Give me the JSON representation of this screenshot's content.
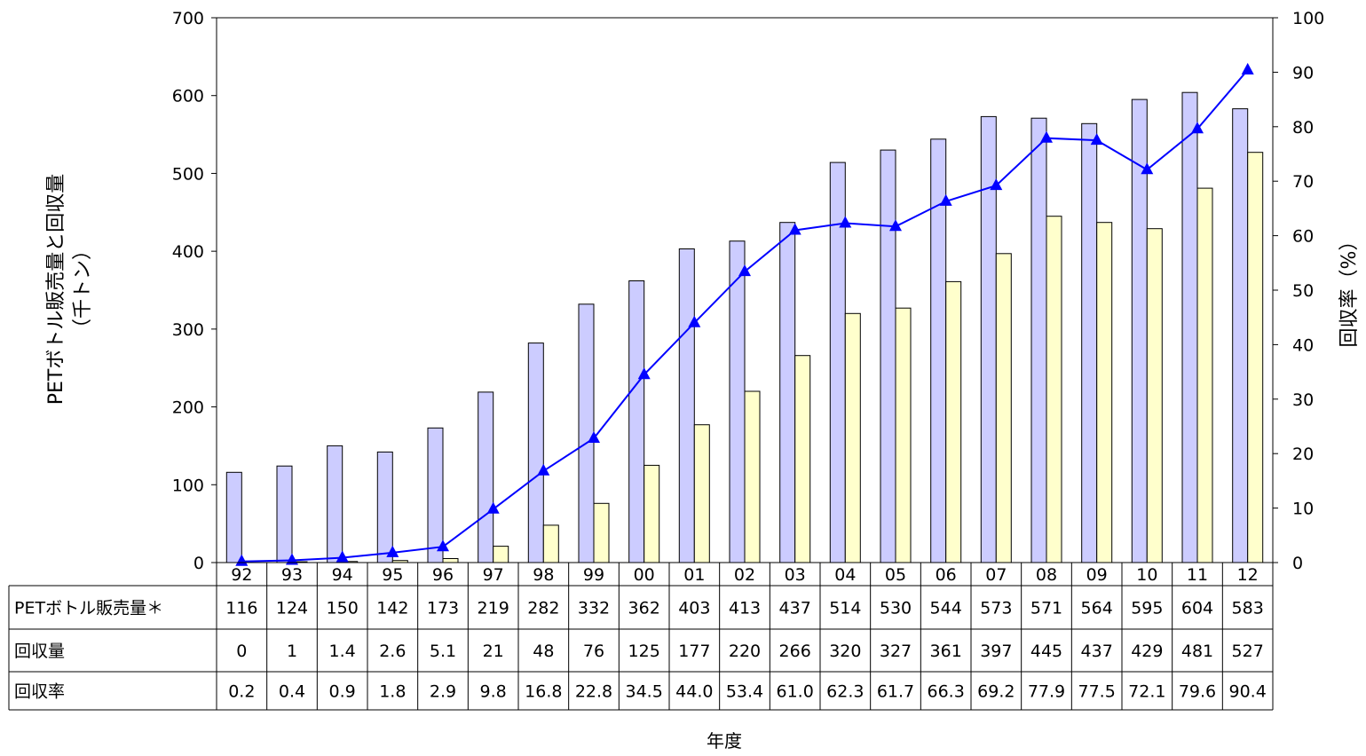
{
  "chart_data": {
    "type": "bar",
    "categories": [
      "92",
      "93",
      "94",
      "95",
      "96",
      "97",
      "98",
      "99",
      "00",
      "01",
      "02",
      "03",
      "04",
      "05",
      "06",
      "07",
      "08",
      "09",
      "10",
      "11",
      "12"
    ],
    "series": [
      {
        "name": "PETボトル販売量＊",
        "type": "bar",
        "axis": "left",
        "color": "#ccccff",
        "values": [
          116,
          124,
          150,
          142,
          173,
          219,
          282,
          332,
          362,
          403,
          413,
          437,
          514,
          530,
          544,
          573,
          571,
          564,
          595,
          604,
          583
        ],
        "labels": [
          "116",
          "124",
          "150",
          "142",
          "173",
          "219",
          "282",
          "332",
          "362",
          "403",
          "413",
          "437",
          "514",
          "530",
          "544",
          "573",
          "571",
          "564",
          "595",
          "604",
          "583"
        ]
      },
      {
        "name": "回収量",
        "type": "bar",
        "axis": "left",
        "color": "#ffffcc",
        "values": [
          0,
          1,
          1.4,
          2.6,
          5.1,
          21,
          48,
          76,
          125,
          177,
          220,
          266,
          320,
          327,
          361,
          397,
          445,
          437,
          429,
          481,
          527
        ],
        "labels": [
          "0",
          "1",
          "1.4",
          "2.6",
          "5.1",
          "21",
          "48",
          "76",
          "125",
          "177",
          "220",
          "266",
          "320",
          "327",
          "361",
          "397",
          "445",
          "437",
          "429",
          "481",
          "527"
        ]
      },
      {
        "name": "回収率",
        "type": "line",
        "axis": "right",
        "color": "#0000ff",
        "values": [
          0.2,
          0.4,
          0.9,
          1.8,
          2.9,
          9.8,
          16.8,
          22.8,
          34.5,
          44.0,
          53.4,
          61.0,
          62.3,
          61.7,
          66.3,
          69.2,
          77.9,
          77.5,
          72.1,
          79.6,
          90.4
        ],
        "labels": [
          "0.2",
          "0.4",
          "0.9",
          "1.8",
          "2.9",
          "9.8",
          "16.8",
          "22.8",
          "34.5",
          "44.0",
          "53.4",
          "61.0",
          "62.3",
          "61.7",
          "66.3",
          "69.2",
          "77.9",
          "77.5",
          "72.1",
          "79.6",
          "90.4"
        ]
      }
    ],
    "xlabel": "年度",
    "ylabel_left_lines": [
      "PETボトル販売量と回収量",
      "（千トン）"
    ],
    "ylabel_right": "回収率（%）",
    "ylim_left": [
      0,
      700
    ],
    "yticks_left": [
      0,
      100,
      200,
      300,
      400,
      500,
      600,
      700
    ],
    "ylim_right": [
      0,
      100
    ],
    "yticks_right": [
      0,
      10,
      20,
      30,
      40,
      50,
      60,
      70,
      80,
      90,
      100
    ],
    "grid": false,
    "legend": "data-table"
  }
}
